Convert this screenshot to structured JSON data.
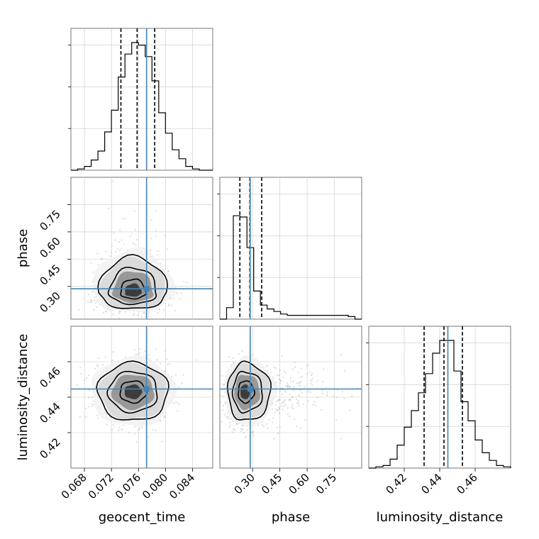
{
  "chart_data": {
    "type": "corner",
    "parameters": [
      {
        "name": "geocent_time",
        "range": [
          0.066,
          0.087
        ],
        "ticks": [
          0.068,
          0.072,
          0.076,
          0.08,
          0.084
        ],
        "tick_labels": [
          "0.068",
          "0.072",
          "0.076",
          "0.080",
          "0.084"
        ],
        "truth": 0.0772,
        "quantiles": [
          0.0734,
          0.0758,
          0.0784
        ]
      },
      {
        "name": "phase",
        "range": [
          0.12,
          0.9
        ],
        "ticks": [
          0.3,
          0.45,
          0.6,
          0.75
        ],
        "tick_labels": [
          "0.30",
          "0.45",
          "0.60",
          "0.75"
        ],
        "truth": 0.287,
        "quantiles": [
          0.23,
          0.285,
          0.35
        ]
      },
      {
        "name": "luminosity_distance",
        "range": [
          0.4,
          0.48
        ],
        "ticks": [
          0.42,
          0.44,
          0.46
        ],
        "tick_labels": [
          "0.42",
          "0.44",
          "0.46"
        ],
        "truth": 0.4446,
        "quantiles": [
          0.4312,
          0.4424,
          0.4528
        ]
      }
    ],
    "histograms": {
      "geocent_time": {
        "edges": [
          0.066,
          0.067,
          0.068,
          0.069,
          0.07,
          0.071,
          0.072,
          0.073,
          0.074,
          0.075,
          0.076,
          0.077,
          0.078,
          0.079,
          0.08,
          0.081,
          0.082,
          0.083,
          0.084,
          0.085,
          0.086,
          0.087
        ],
        "counts": [
          0.0,
          0.01,
          0.03,
          0.08,
          0.15,
          0.3,
          0.47,
          0.73,
          0.91,
          1.0,
          0.98,
          0.89,
          0.7,
          0.45,
          0.29,
          0.16,
          0.09,
          0.03,
          0.01,
          0.0,
          0.0
        ]
      },
      "phase": {
        "edges": [
          0.12,
          0.157,
          0.194,
          0.231,
          0.269,
          0.306,
          0.343,
          0.38,
          0.417,
          0.454,
          0.491,
          0.529,
          0.566,
          0.603,
          0.64,
          0.677,
          0.714,
          0.751,
          0.789,
          0.826,
          0.863,
          0.9
        ],
        "counts": [
          0.0,
          0.09,
          0.81,
          0.8,
          0.56,
          0.22,
          0.11,
          0.08,
          0.06,
          0.04,
          0.03,
          0.03,
          0.03,
          0.03,
          0.03,
          0.03,
          0.03,
          0.03,
          0.03,
          0.02,
          0.0
        ]
      },
      "luminosity_distance": {
        "edges": [
          0.4,
          0.404,
          0.408,
          0.412,
          0.416,
          0.42,
          0.424,
          0.428,
          0.432,
          0.436,
          0.44,
          0.444,
          0.448,
          0.452,
          0.456,
          0.46,
          0.464,
          0.468,
          0.472,
          0.476,
          0.48
        ],
        "counts": [
          0.0,
          0.01,
          0.02,
          0.07,
          0.18,
          0.32,
          0.45,
          0.59,
          0.74,
          0.9,
          1.0,
          1.0,
          0.76,
          0.52,
          0.37,
          0.22,
          0.12,
          0.06,
          0.02,
          0.01
        ]
      }
    },
    "contours": {
      "phase_vs_geocent_time": {
        "center": [
          0.0752,
          0.266
        ],
        "sigma_x": 0.0025,
        "sigma_y_low": 0.045,
        "sigma_y_high": 0.12
      },
      "luminosity_distance_vs_geocent_time": {
        "center": [
          0.0752,
          0.443
        ],
        "sigma_x": 0.0026,
        "sigma_y": 0.0082
      },
      "luminosity_distance_vs_phase": {
        "center": [
          0.255,
          0.443
        ],
        "sigma_x_low": 0.045,
        "sigma_x_high": 0.18,
        "sigma_y": 0.0082
      }
    },
    "levels": [
      "1-sigma",
      "2-sigma",
      "3-sigma"
    ],
    "grid": true,
    "colors": {
      "truth": "#4682b4",
      "hist": "#000000",
      "quantile": "#000000",
      "samples": "#9a9a9a"
    }
  }
}
